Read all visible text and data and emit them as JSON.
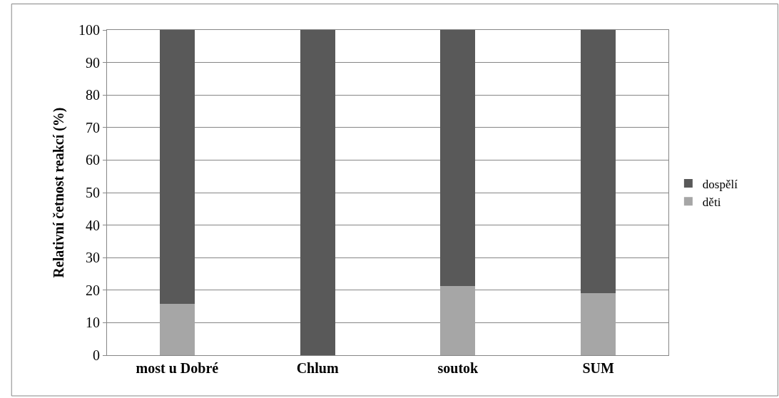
{
  "chart_data": {
    "type": "bar",
    "stacked": true,
    "ylabel": "Relativní četnost reakcí (%)",
    "categories": [
      "most u Dobré",
      "Chlum",
      "soutok",
      "SUM"
    ],
    "series": [
      {
        "name": "děti",
        "color": "#a6a6a6",
        "values": [
          15.8,
          0,
          21.3,
          19.1
        ]
      },
      {
        "name": "dospělí",
        "color": "#595959",
        "values": [
          84.2,
          100,
          78.7,
          80.9
        ]
      }
    ],
    "ylim": [
      0,
      100
    ],
    "yticks": [
      0,
      10,
      20,
      30,
      40,
      50,
      60,
      70,
      80,
      90,
      100
    ],
    "grid": "y",
    "legend": "right"
  }
}
